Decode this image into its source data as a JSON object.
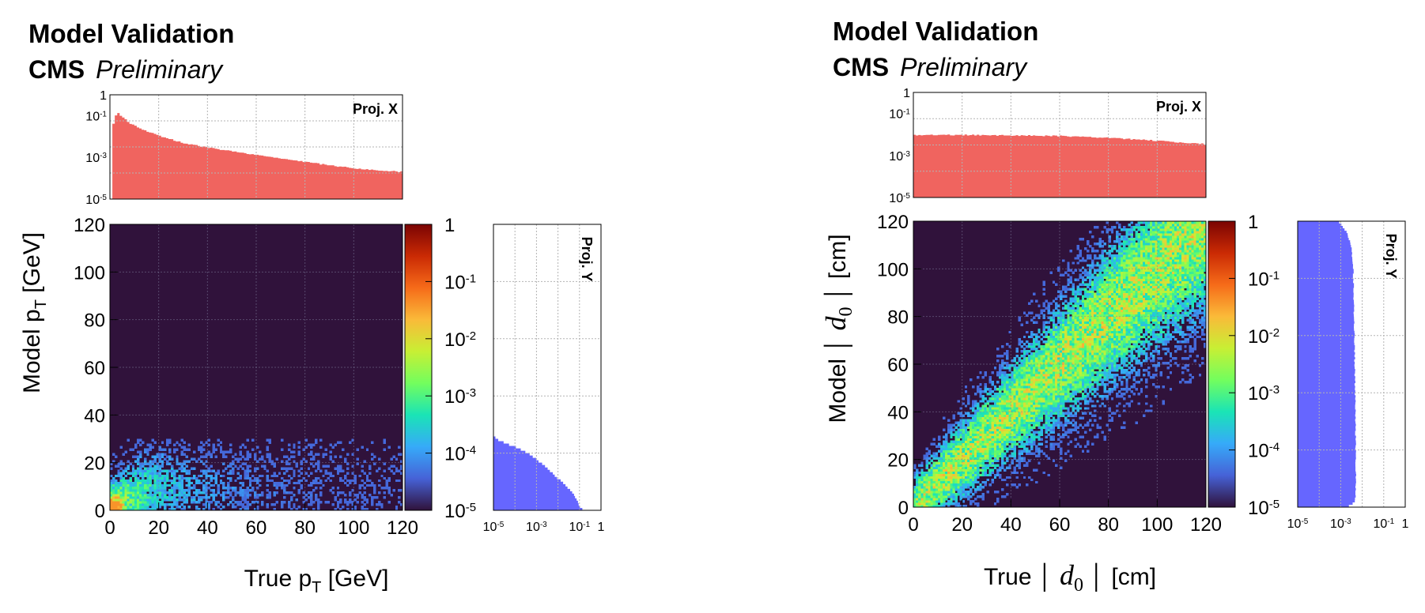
{
  "chart_data": [
    {
      "type": "heatmap",
      "title": "Model Validation",
      "experiment": "CMS",
      "status": "Preliminary",
      "xlabel": {
        "prefix": "True p",
        "sub": "T",
        "suffix": " [GeV]"
      },
      "ylabel": {
        "prefix": "Model p",
        "sub": "T",
        "suffix": " [GeV]"
      },
      "xlim": [
        0,
        120
      ],
      "ylim": [
        0,
        120
      ],
      "xticks": [
        "0",
        "20",
        "40",
        "60",
        "80",
        "100",
        "120"
      ],
      "yticks": [
        "0",
        "20",
        "40",
        "60",
        "80",
        "100",
        "120"
      ],
      "correlation": "low-value cluster",
      "colorbar": {
        "scale": "log",
        "range": [
          1e-05,
          1
        ],
        "labels": [
          {
            "base": "10",
            "exp": "-5"
          },
          {
            "base": "10",
            "exp": "-4"
          },
          {
            "base": "10",
            "exp": "-3"
          },
          {
            "base": "10",
            "exp": "-2"
          },
          {
            "base": "10",
            "exp": "-1"
          },
          {
            "base": "1",
            "exp": ""
          }
        ],
        "colors": [
          "#30123b",
          "#4662d7",
          "#36aaf9",
          "#1ae4b6",
          "#72fe5e",
          "#c8ef34",
          "#faba39",
          "#f66b19",
          "#ca2a04",
          "#7a0403"
        ]
      },
      "projection_x": {
        "label": "Proj. X",
        "yscale": "log",
        "ylim": [
          1e-05,
          1
        ],
        "yticks": [
          {
            "base": "10",
            "exp": "-5"
          },
          {
            "base": "10",
            "exp": "-3"
          },
          {
            "base": "10",
            "exp": "-1"
          },
          {
            "base": "1",
            "exp": ""
          }
        ],
        "color": "#f0645f",
        "x": [
          1.5,
          3,
          5,
          8,
          12,
          20,
          30,
          40,
          60,
          80,
          100,
          120
        ],
        "values": [
          0.04,
          0.15,
          0.09,
          0.045,
          0.025,
          0.011,
          0.005,
          0.003,
          0.0013,
          0.0006,
          0.0003,
          0.0002
        ]
      },
      "projection_y": {
        "label": "Proj. Y",
        "xscale": "log",
        "xlim": [
          1e-05,
          1
        ],
        "xticks": [
          {
            "base": "10",
            "exp": "-5"
          },
          {
            "base": "10",
            "exp": "-3"
          },
          {
            "base": "10",
            "exp": "-1"
          },
          {
            "base": "1",
            "exp": ""
          }
        ],
        "color": "#6666ff",
        "y": [
          0,
          1,
          2,
          4,
          6,
          8,
          10,
          12,
          14,
          16,
          18,
          20,
          22,
          24,
          26,
          28,
          30
        ],
        "values": [
          0.15,
          0.12,
          0.1,
          0.08,
          0.06,
          0.04,
          0.025,
          0.015,
          0.008,
          0.005,
          0.003,
          0.0015,
          0.0008,
          0.0004,
          0.00015,
          4e-05,
          1.2e-05
        ]
      }
    },
    {
      "type": "heatmap",
      "title": "Model Validation",
      "experiment": "CMS",
      "status": "Preliminary",
      "xlabel": {
        "prefix": "True",
        "var": "d",
        "sub": "0",
        "suffix": "[cm]"
      },
      "ylabel": {
        "prefix": "Model",
        "var": "d",
        "sub": "0",
        "suffix": "[cm]"
      },
      "xlim": [
        0,
        120
      ],
      "ylim": [
        0,
        120
      ],
      "xticks": [
        "0",
        "20",
        "40",
        "60",
        "80",
        "100",
        "120"
      ],
      "yticks": [
        "0",
        "20",
        "40",
        "60",
        "80",
        "100",
        "120"
      ],
      "correlation": "diagonal band",
      "colorbar": {
        "scale": "log",
        "range": [
          1e-05,
          1
        ],
        "labels": [
          {
            "base": "10",
            "exp": "-5"
          },
          {
            "base": "10",
            "exp": "-4"
          },
          {
            "base": "10",
            "exp": "-3"
          },
          {
            "base": "10",
            "exp": "-2"
          },
          {
            "base": "10",
            "exp": "-1"
          },
          {
            "base": "1",
            "exp": ""
          }
        ],
        "colors": [
          "#30123b",
          "#4662d7",
          "#36aaf9",
          "#1ae4b6",
          "#72fe5e",
          "#c8ef34",
          "#faba39",
          "#f66b19",
          "#ca2a04",
          "#7a0403"
        ]
      },
      "projection_x": {
        "label": "Proj. X",
        "yscale": "log",
        "ylim": [
          1e-05,
          1
        ],
        "yticks": [
          {
            "base": "10",
            "exp": "-5"
          },
          {
            "base": "10",
            "exp": "-3"
          },
          {
            "base": "10",
            "exp": "-1"
          },
          {
            "base": "1",
            "exp": ""
          }
        ],
        "color": "#f0645f",
        "x": [
          0,
          20,
          40,
          60,
          80,
          100,
          120
        ],
        "values": [
          0.0095,
          0.0095,
          0.009,
          0.0085,
          0.007,
          0.005,
          0.0035
        ]
      },
      "projection_y": {
        "label": "Proj. Y",
        "xscale": "log",
        "xlim": [
          1e-05,
          1
        ],
        "xticks": [
          {
            "base": "10",
            "exp": "-5"
          },
          {
            "base": "10",
            "exp": "-3"
          },
          {
            "base": "10",
            "exp": "-1"
          },
          {
            "base": "1",
            "exp": ""
          }
        ],
        "color": "#6666ff",
        "y": [
          0,
          1,
          2,
          5,
          10,
          20,
          40,
          60,
          80,
          100,
          110,
          115,
          118,
          120
        ],
        "values": [
          0.002,
          0.003,
          0.0045,
          0.005,
          0.005,
          0.005,
          0.0048,
          0.0045,
          0.0042,
          0.0038,
          0.003,
          0.002,
          0.0012,
          0.0008
        ]
      }
    }
  ]
}
